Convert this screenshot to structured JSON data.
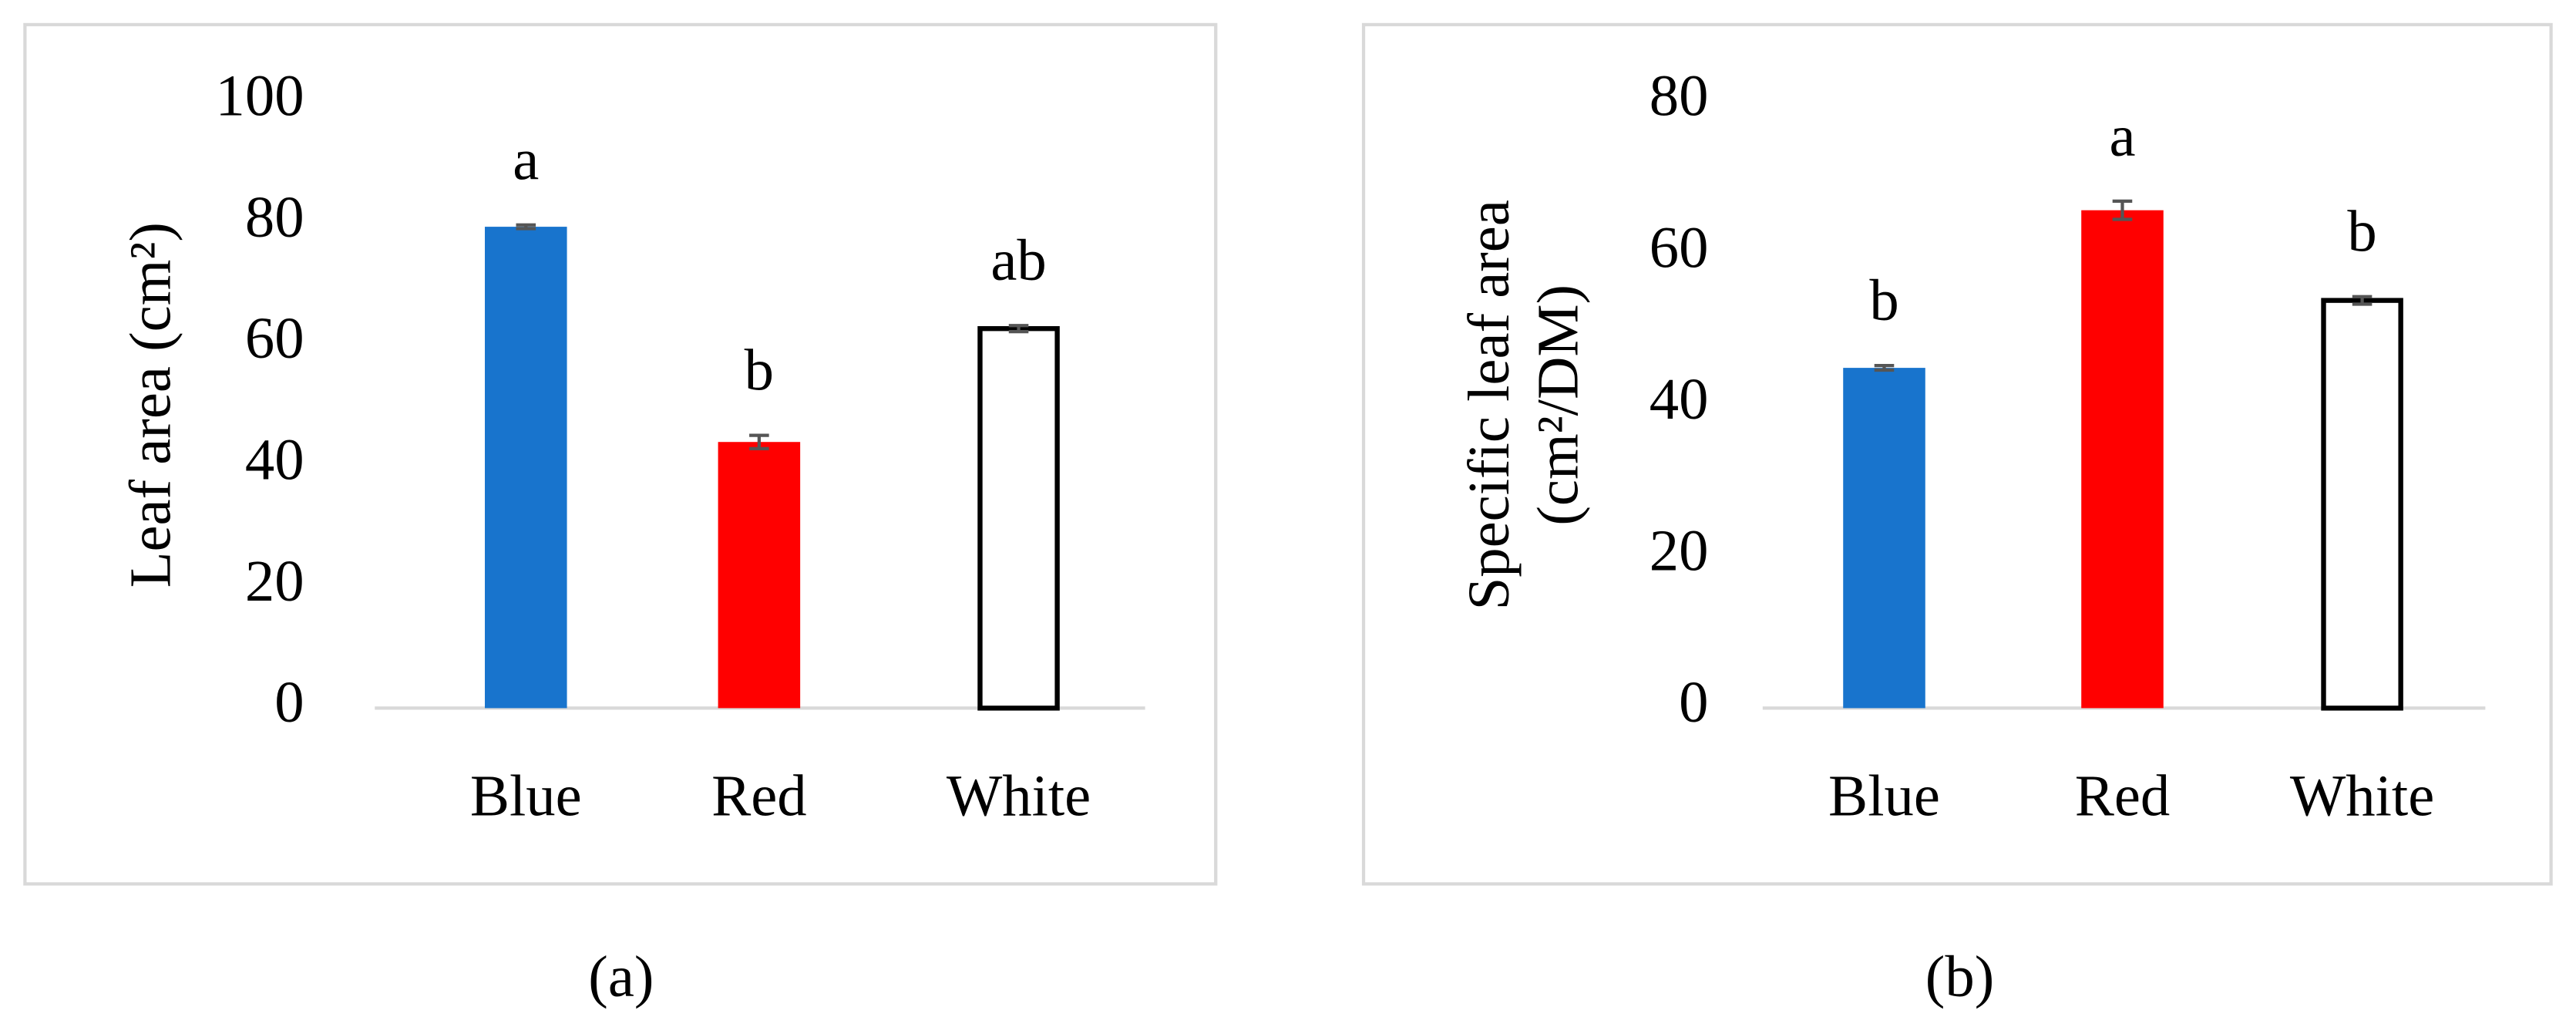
{
  "chart_data": [
    {
      "type": "bar",
      "ylabel": "Leaf area (cm²)",
      "caption": "(a)",
      "categories": [
        "Blue",
        "Red",
        "White"
      ],
      "values": [
        79.4,
        43.9,
        62.6
      ],
      "errors": [
        0.3,
        1.1,
        0.5
      ],
      "annotations": [
        "a",
        "b",
        "ab"
      ],
      "colors": [
        "#1874cd",
        "#ff0000",
        "#ffffff"
      ],
      "edgecolors": [
        "#1874cd",
        "#ff0000",
        "#000000"
      ],
      "ylim": [
        0,
        100
      ],
      "yticks": [
        0,
        20,
        40,
        60,
        80,
        100
      ]
    },
    {
      "type": "bar",
      "ylabel": [
        "Specific leaf area",
        "(cm²/DM)"
      ],
      "caption": "(b)",
      "categories": [
        "Blue",
        "Red",
        "White"
      ],
      "values": [
        44.9,
        65.7,
        53.8
      ],
      "errors": [
        0.3,
        1.2,
        0.5
      ],
      "annotations": [
        "b",
        "a",
        "b"
      ],
      "colors": [
        "#1874cd",
        "#ff0000",
        "#ffffff"
      ],
      "edgecolors": [
        "#1874cd",
        "#ff0000",
        "#000000"
      ],
      "ylim": [
        0,
        80
      ],
      "yticks": [
        0,
        20,
        40,
        60,
        80
      ]
    }
  ]
}
